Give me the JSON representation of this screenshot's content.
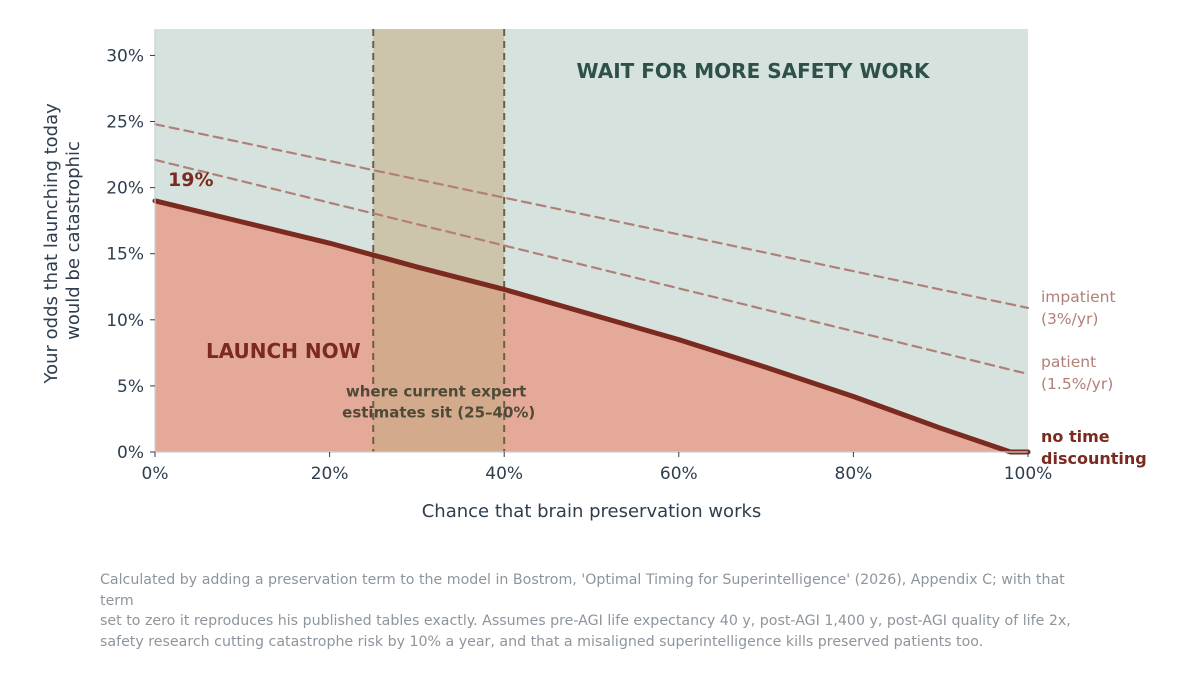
{
  "chart_data": {
    "type": "area",
    "xlabel": "Chance that brain preservation works",
    "ylabel": [
      "Your odds that launching today",
      "would be catastrophic"
    ],
    "xlim": [
      0,
      100
    ],
    "ylim": [
      0,
      32
    ],
    "xticks": [
      0,
      20,
      40,
      60,
      80,
      100
    ],
    "xtick_labels": [
      "0%",
      "20%",
      "40%",
      "60%",
      "80%",
      "100%"
    ],
    "yticks": [
      0,
      5,
      10,
      15,
      20,
      25,
      30
    ],
    "ytick_labels": [
      "0%",
      "5%",
      "10%",
      "15%",
      "20%",
      "25%",
      "30%"
    ],
    "grid": false,
    "series": [
      {
        "name": "no time discounting",
        "label_lines": [
          "no time",
          "discounting"
        ],
        "style": "solid",
        "color": "#7b2a20",
        "x": [
          0,
          10,
          20,
          30,
          40,
          50,
          60,
          70,
          80,
          90,
          98,
          100
        ],
        "y": [
          19.0,
          17.4,
          15.8,
          14.0,
          12.3,
          10.4,
          8.5,
          6.4,
          4.2,
          1.8,
          0,
          0
        ]
      },
      {
        "name": "patient (1.5%/yr)",
        "label_lines": [
          "patient",
          "(1.5%/yr)"
        ],
        "style": "dashed",
        "color": "#b08078",
        "x": [
          0,
          100
        ],
        "y": [
          22.1,
          5.9
        ]
      },
      {
        "name": "impatient (3%/yr)",
        "label_lines": [
          "impatient",
          "(3%/yr)"
        ],
        "style": "dashed",
        "color": "#b08078",
        "x": [
          0,
          100
        ],
        "y": [
          24.8,
          10.9
        ]
      }
    ],
    "regions": {
      "above": {
        "label": "WAIT FOR MORE SAFETY WORK",
        "color": "#d6e2de",
        "text_color": "#2e5048"
      },
      "below": {
        "label": "LAUNCH NOW",
        "color": "#e4a998",
        "text_color": "#7b2a20"
      }
    },
    "band": {
      "x0": 25,
      "x1": 40,
      "color": "#c4ad83",
      "label_lines": [
        "where current expert",
        "estimates sit (25–40%)"
      ],
      "text_color": "#4f4a37"
    },
    "annotations": [
      {
        "text": "19%",
        "x": 0,
        "y": 19.0,
        "color": "#7b2a20"
      }
    ]
  },
  "caption": [
    "Calculated by adding a preservation term to the model in Bostrom, 'Optimal Timing for Superintelligence' (2026), Appendix C; with that term",
    "set to zero it reproduces his published tables exactly. Assumes pre-AGI life expectancy 40 y, post-AGI 1,400 y, post-AGI quality of life 2x,",
    "safety research cutting catastrophe risk by 10% a year, and that a misaligned superintelligence kills preserved patients too."
  ]
}
